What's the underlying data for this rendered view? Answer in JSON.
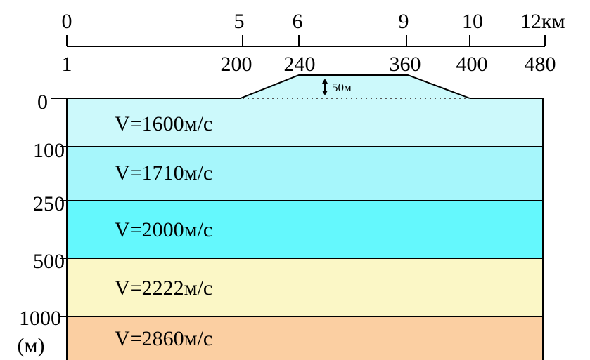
{
  "scale": {
    "top_ticks": [
      {
        "value": 0,
        "label": "0"
      },
      {
        "value": 5,
        "label": "5"
      },
      {
        "value": 6,
        "label": "6"
      },
      {
        "value": 9,
        "label": "9"
      },
      {
        "value": 10,
        "label": "10"
      },
      {
        "value": 12,
        "label": "12км"
      }
    ],
    "bottom_labels": [
      "1",
      "200",
      "240",
      "360",
      "400",
      "480"
    ]
  },
  "ridge": {
    "height_label": "50м"
  },
  "depth_axis": {
    "labels": [
      "0",
      "100",
      "250",
      "500",
      "1000"
    ],
    "unit": "(м)"
  },
  "layers": [
    {
      "velocity": "V=1600м/с",
      "color": "#ccf9fb"
    },
    {
      "velocity": "V=1710м/с",
      "color": "#a6f6fb"
    },
    {
      "velocity": "V=2000м/с",
      "color": "#64f8fd"
    },
    {
      "velocity": "V=2222м/с",
      "color": "#fbf7c6"
    },
    {
      "velocity": "V=2860м/с",
      "color": "#fbcfa2"
    }
  ],
  "ridge_color": "#ccf9fb"
}
